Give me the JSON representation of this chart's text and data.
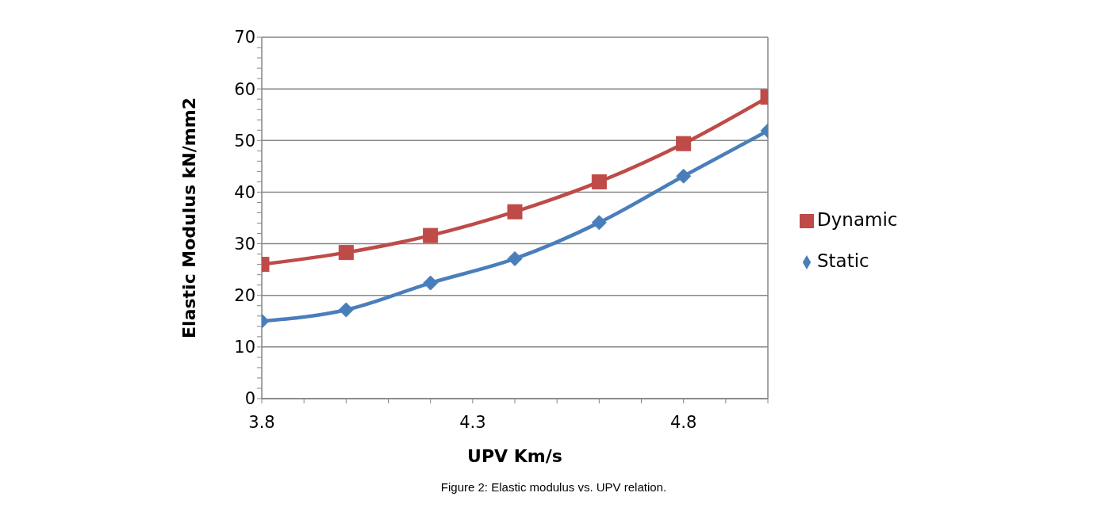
{
  "chart_data": {
    "type": "line",
    "title": "Figure 2: Elastic modulus vs. UPV relation.",
    "xlabel": "UPV Km/s",
    "ylabel": "Elastic Modulus kN/mm2",
    "x": [
      3.8,
      4.0,
      4.2,
      4.4,
      4.6,
      4.8,
      5.0
    ],
    "series": [
      {
        "name": "Static",
        "color": "#4a7ebb",
        "marker": "diamond",
        "values": [
          15.0,
          17.2,
          22.4,
          27.1,
          34.1,
          43.1,
          51.9
        ]
      },
      {
        "name": "Dynamic",
        "color": "#be4b48",
        "marker": "square",
        "values": [
          26.0,
          28.3,
          31.6,
          36.2,
          42.0,
          49.4,
          58.4
        ]
      }
    ],
    "xlim": [
      3.8,
      5.0
    ],
    "xticks": [
      3.8,
      {
        "value": 3.9,
        "label": null
      },
      {
        "value": 4.0,
        "label": null
      },
      {
        "value": 4.1,
        "label": null
      },
      {
        "value": 4.2,
        "label": null
      },
      4.3,
      {
        "value": 4.4,
        "label": null
      },
      {
        "value": 4.5,
        "label": null
      },
      {
        "value": 4.6,
        "label": null
      },
      {
        "value": 4.7,
        "label": null
      },
      4.8,
      {
        "value": 4.9,
        "label": null
      },
      {
        "value": 5.0,
        "label": null
      }
    ],
    "ylim": [
      0,
      70
    ],
    "yticks": [
      0,
      {
        "value": 2,
        "label": null
      },
      {
        "value": 4,
        "label": null
      },
      {
        "value": 6,
        "label": null
      },
      {
        "value": 8,
        "label": null
      },
      10,
      {
        "value": 12,
        "label": null
      },
      {
        "value": 14,
        "label": null
      },
      {
        "value": 16,
        "label": null
      },
      {
        "value": 18,
        "label": null
      },
      20,
      {
        "value": 22,
        "label": null
      },
      {
        "value": 24,
        "label": null
      },
      {
        "value": 26,
        "label": null
      },
      {
        "value": 28,
        "label": null
      },
      30,
      {
        "value": 32,
        "label": null
      },
      {
        "value": 34,
        "label": null
      },
      {
        "value": 36,
        "label": null
      },
      {
        "value": 38,
        "label": null
      },
      40,
      {
        "value": 42,
        "label": null
      },
      {
        "value": 44,
        "label": null
      },
      {
        "value": 46,
        "label": null
      },
      {
        "value": 48,
        "label": null
      },
      50,
      {
        "value": 52,
        "label": null
      },
      {
        "value": 54,
        "label": null
      },
      {
        "value": 56,
        "label": null
      },
      {
        "value": 58,
        "label": null
      },
      60,
      {
        "value": 62,
        "label": null
      },
      {
        "value": 64,
        "label": null
      },
      {
        "value": 66,
        "label": null
      },
      {
        "value": 68,
        "label": null
      },
      70
    ],
    "grid": "y",
    "legend": "right",
    "line_style": "solid"
  }
}
